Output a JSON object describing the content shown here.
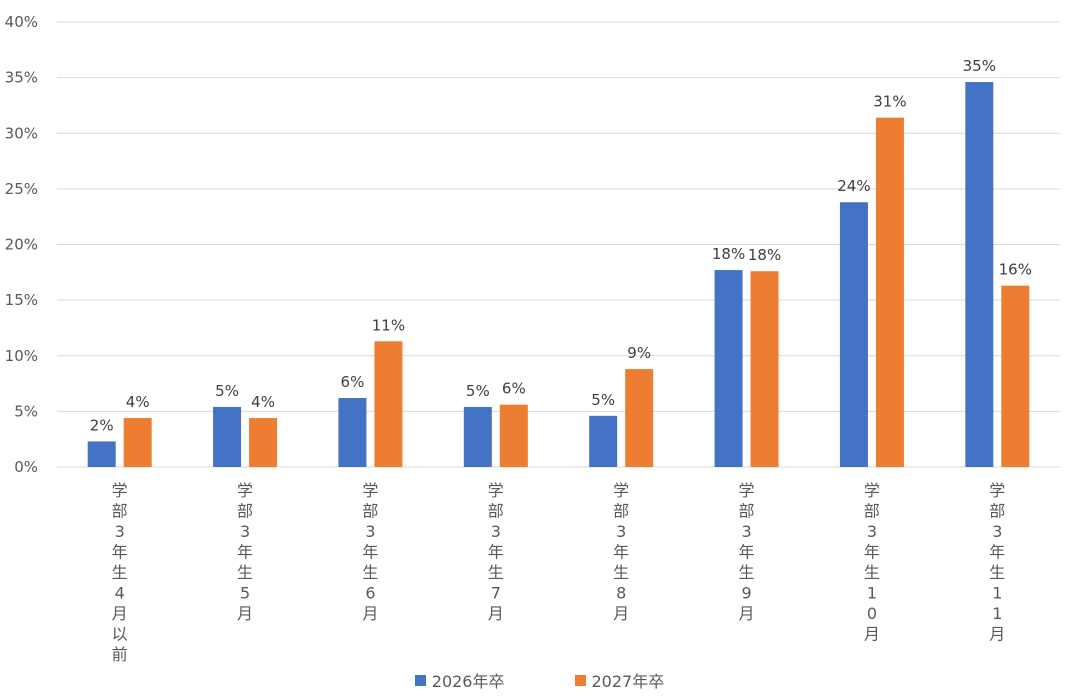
{
  "chart_data": {
    "type": "bar",
    "categories": [
      "学部3年生4月以前",
      "学部3年生5月",
      "学部3年生6月",
      "学部3年生7月",
      "学部3年生8月",
      "学部3年生9月",
      "学部3年生10月",
      "学部3年生11月"
    ],
    "series": [
      {
        "name": "2026年卒",
        "color": "#4472C4",
        "values": [
          2.3,
          5.4,
          6.2,
          5.4,
          4.6,
          17.7,
          23.8,
          34.6
        ],
        "labels": [
          "2%",
          "5%",
          "6%",
          "5%",
          "5%",
          "18%",
          "24%",
          "35%"
        ]
      },
      {
        "name": "2027年卒",
        "color": "#ED7D31",
        "values": [
          4.4,
          4.4,
          11.3,
          5.6,
          8.8,
          17.6,
          31.4,
          16.3
        ],
        "labels": [
          "4%",
          "4%",
          "11%",
          "6%",
          "9%",
          "18%",
          "31%",
          "16%"
        ]
      }
    ],
    "y_ticks": [
      "0%",
      "5%",
      "10%",
      "15%",
      "20%",
      "25%",
      "30%",
      "35%",
      "40%"
    ],
    "ylim": [
      0,
      40
    ],
    "xlabel": "",
    "ylabel": "",
    "title": "",
    "grid": true,
    "legend_position": "bottom"
  }
}
